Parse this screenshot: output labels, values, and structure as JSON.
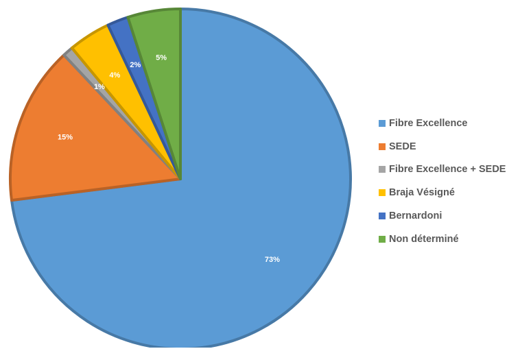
{
  "chart_data": {
    "type": "pie",
    "title": "",
    "legend_position": "right",
    "start_angle_deg": 0,
    "direction": "clockwise",
    "slices": [
      {
        "label": "Fibre Excellence",
        "value": 73,
        "display": "73%",
        "color": "#5B9BD5"
      },
      {
        "label": "SEDE",
        "value": 15,
        "display": "15%",
        "color": "#ED7D31"
      },
      {
        "label": "Fibre Excellence + SEDE",
        "value": 1,
        "display": "1%",
        "color": "#A5A5A5"
      },
      {
        "label": "Braja Vésigné",
        "value": 4,
        "display": "4%",
        "color": "#FFC000"
      },
      {
        "label": "Bernardoni",
        "value": 2,
        "display": "2%",
        "color": "#4472C4"
      },
      {
        "label": "Non déterminé",
        "value": 5,
        "display": "5%",
        "color": "#70AD47"
      }
    ]
  }
}
